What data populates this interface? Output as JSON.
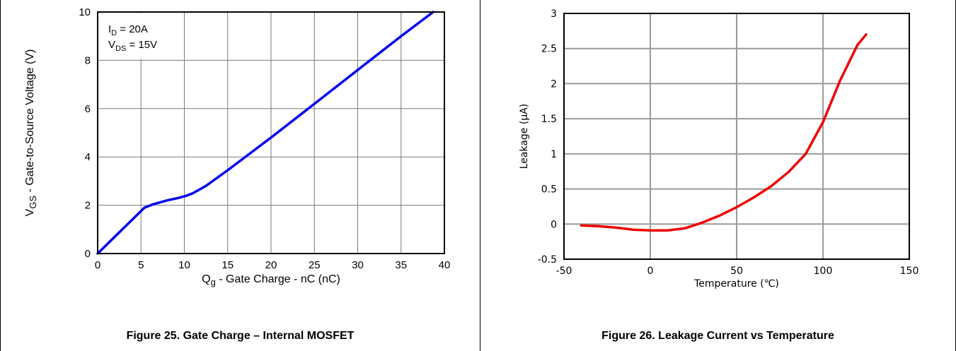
{
  "chart_data": [
    {
      "type": "line",
      "caption": "Figure 25. Gate Charge – Internal MOSFET",
      "xlabel": {
        "main": "Q",
        "sub": "g",
        "rest": " - Gate Charge - nC (nC)"
      },
      "ylabel": {
        "main": "V",
        "sub": "GS",
        "rest": " - Gate-to-Source Voltage (V)"
      },
      "xlim": [
        0,
        40
      ],
      "ylim": [
        0,
        10
      ],
      "xticks": [
        0,
        5,
        10,
        15,
        20,
        25,
        30,
        35,
        40
      ],
      "yticks": [
        0,
        2,
        4,
        6,
        8,
        10
      ],
      "grid": true,
      "legend_box": [
        {
          "main": "I",
          "sub": "D",
          "rest": " = 20A"
        },
        {
          "main": "V",
          "sub": "DS",
          "rest": " = 15V"
        }
      ],
      "legend_placement": "top-left",
      "series": [
        {
          "color": "#0000ee",
          "x": [
            0,
            5.4,
            6.5,
            8,
            9.3,
            10.3,
            11,
            12.5,
            15,
            20,
            25,
            30,
            35,
            38.7
          ],
          "y": [
            0,
            1.9,
            2.05,
            2.2,
            2.3,
            2.4,
            2.5,
            2.8,
            3.45,
            4.8,
            6.2,
            7.6,
            9.0,
            10.0
          ]
        }
      ]
    },
    {
      "type": "line",
      "caption": "Figure 26. Leakage Current vs Temperature",
      "xlabel": "Temperature (℃)",
      "ylabel": "Leakage (µA)",
      "xlim": [
        -50,
        150
      ],
      "ylim": [
        -0.5,
        3
      ],
      "xticks": [
        -50,
        0,
        50,
        100,
        150
      ],
      "yticks": [
        -0.5,
        0,
        0.5,
        1,
        1.5,
        2,
        2.5,
        3
      ],
      "ytick_labels": [
        "-0.5",
        "0",
        "0.5",
        "1",
        "1.5",
        "2",
        "2.5",
        "3"
      ],
      "grid": true,
      "series": [
        {
          "color": "#ee0000",
          "x": [
            -40,
            -30,
            -20,
            -10,
            0,
            10,
            20,
            30,
            40,
            50,
            60,
            70,
            80,
            90,
            100,
            110,
            120,
            125
          ],
          "y": [
            -0.02,
            -0.03,
            -0.05,
            -0.08,
            -0.09,
            -0.09,
            -0.06,
            0.02,
            0.12,
            0.24,
            0.38,
            0.54,
            0.74,
            1.0,
            1.45,
            2.05,
            2.55,
            2.7
          ]
        }
      ]
    }
  ]
}
